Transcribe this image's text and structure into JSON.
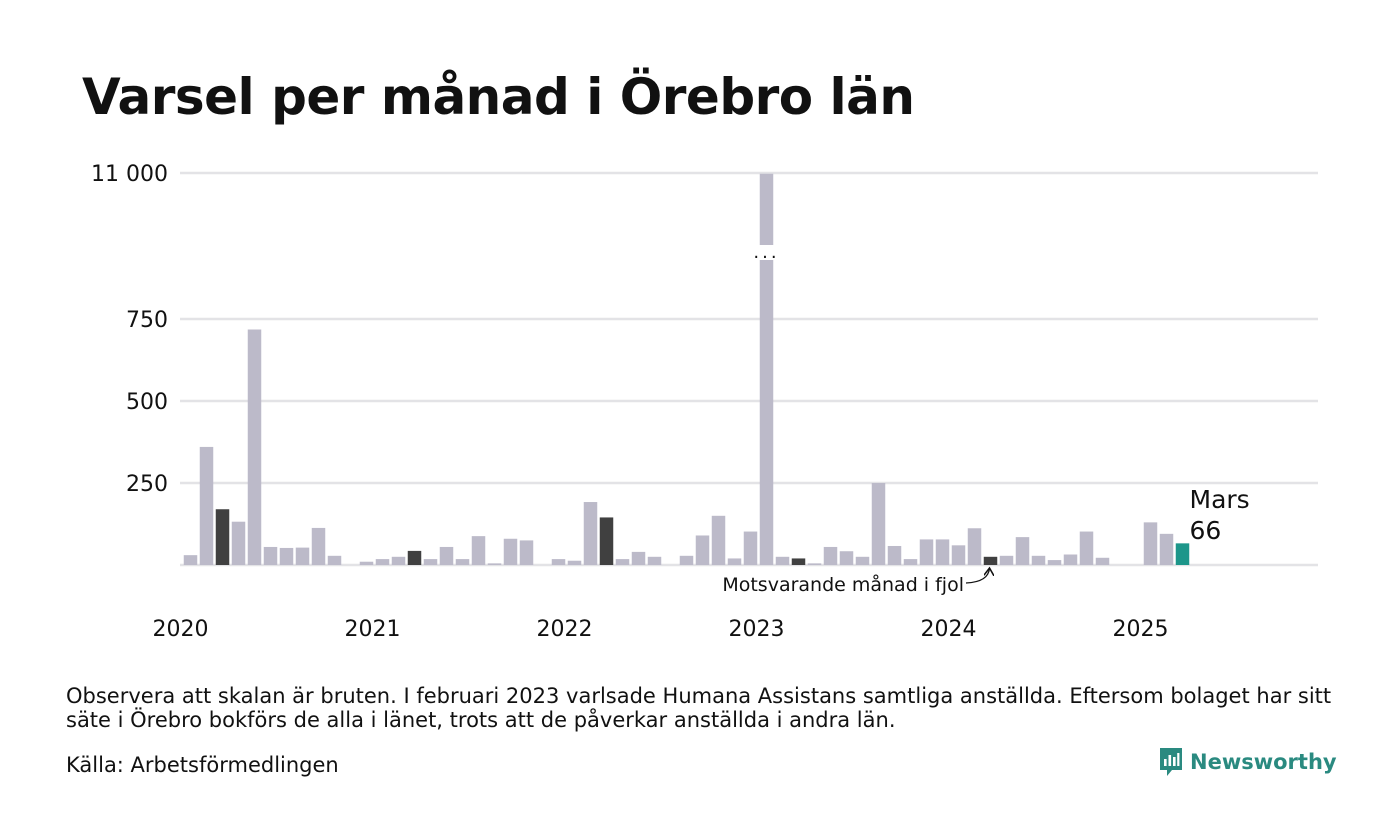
{
  "title": "Varsel per månad i Örebro län",
  "note": "Observera att skalan är bruten. I februari 2023 varlsade Humana Assistans samtliga anställda. Eftersom bolaget har sitt säte i Örebro bokförs de alla i länet, trots att de påverkar anställda i andra län.",
  "source": "Källa: Arbetsförmedlingen",
  "logo": {
    "text": "Newsworthy",
    "icon": "newsworthy-chart-icon"
  },
  "colors": {
    "grey": "#bcbac9",
    "dark": "#404040",
    "teal": "#1d968a",
    "grid": "#e3e3e6"
  },
  "chart_data": {
    "type": "bar",
    "y_tick_labels": [
      "11 000",
      "750",
      "500",
      "250"
    ],
    "y_ticks": [
      11000,
      750,
      500,
      250
    ],
    "broken_axis": {
      "below": 750,
      "top_value": 11000,
      "marker": "..."
    },
    "x_tick_labels": [
      "2020",
      "2021",
      "2022",
      "2023",
      "2024",
      "2025"
    ],
    "x": [
      "2020-01",
      "2020-02",
      "2020-03",
      "2020-04",
      "2020-05",
      "2020-06",
      "2020-07",
      "2020-08",
      "2020-09",
      "2020-10",
      "2020-11",
      "2020-12",
      "2021-01",
      "2021-02",
      "2021-03",
      "2021-04",
      "2021-05",
      "2021-06",
      "2021-07",
      "2021-08",
      "2021-09",
      "2021-10",
      "2021-11",
      "2021-12",
      "2022-01",
      "2022-02",
      "2022-03",
      "2022-04",
      "2022-05",
      "2022-06",
      "2022-07",
      "2022-08",
      "2022-09",
      "2022-10",
      "2022-11",
      "2022-12",
      "2023-01",
      "2023-02",
      "2023-03",
      "2023-04",
      "2023-05",
      "2023-06",
      "2023-07",
      "2023-08",
      "2023-09",
      "2023-10",
      "2023-11",
      "2023-12",
      "2024-01",
      "2024-02",
      "2024-03",
      "2024-04",
      "2024-05",
      "2024-06",
      "2024-07",
      "2024-08",
      "2024-09",
      "2024-10",
      "2024-11",
      "2024-12",
      "2025-01",
      "2025-02",
      "2025-03"
    ],
    "values": [
      30,
      360,
      170,
      132,
      718,
      55,
      52,
      53,
      113,
      28,
      0,
      10,
      18,
      25,
      43,
      18,
      55,
      18,
      88,
      5,
      80,
      75,
      0,
      18,
      13,
      192,
      145,
      18,
      40,
      25,
      0,
      28,
      90,
      150,
      20,
      102,
      10950,
      25,
      20,
      5,
      55,
      42,
      25,
      250,
      58,
      18,
      78,
      78,
      60,
      112,
      25,
      28,
      85,
      28,
      15,
      32,
      102,
      22,
      0,
      0,
      130,
      95,
      66
    ],
    "highlight": {
      "comparison_months": [
        "2020-03",
        "2021-03",
        "2022-03",
        "2023-03",
        "2024-03"
      ],
      "current_month": "2025-03"
    },
    "current_label": {
      "month": "Mars",
      "value": "66"
    },
    "annotation": "Motsvarande månad i fjol",
    "grid": true
  }
}
